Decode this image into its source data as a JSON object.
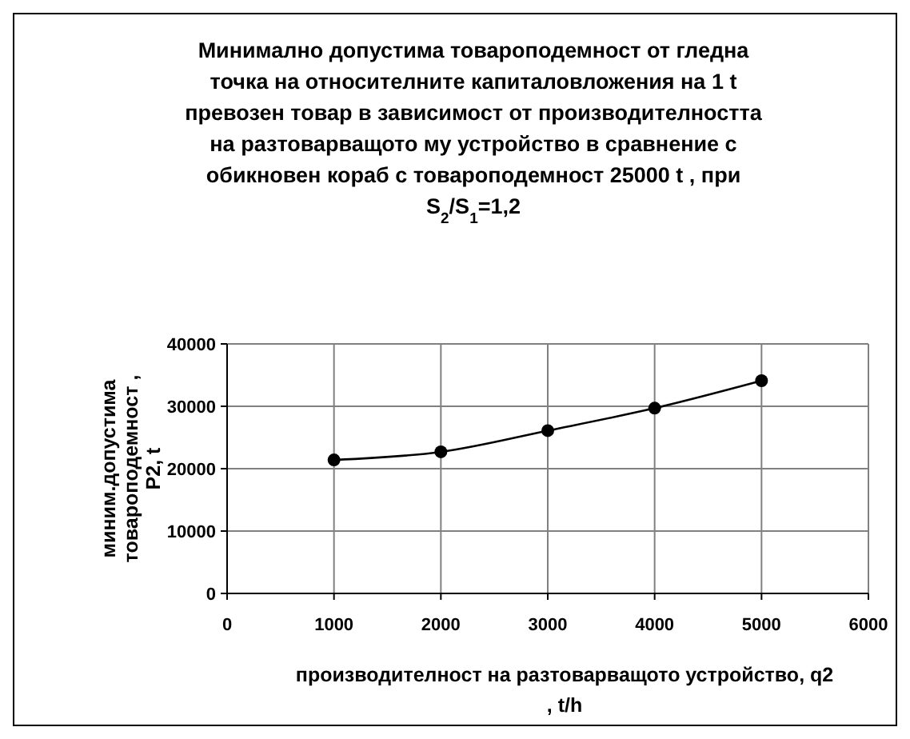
{
  "chart_data": {
    "type": "line",
    "title": "Минимално допустима товароподемност от гледна точка на относителните капиталовложения на 1 t превозен товар в зависимост от производителността на разтоварващото му устройство в сравнение с обикновен кораб с товароподемност 25000 t , при S$_{2}$/S$_{1}$=1,2",
    "xlabel": "производителност на разтоварващото устройство, q2 , t/h",
    "ylabel": "миним.допустима товароподемност , P2, t",
    "x": [
      1000,
      2000,
      3000,
      4000,
      5000
    ],
    "series": [
      {
        "color": "#000000",
        "values": [
          21400,
          22700,
          26100,
          29700,
          34100
        ]
      }
    ],
    "xlim": [
      0,
      6000
    ],
    "xticks": [
      0,
      1000,
      2000,
      3000,
      4000,
      5000,
      6000
    ],
    "ylim": [
      0,
      40000
    ],
    "yticks": [
      0,
      10000,
      20000,
      30000,
      40000
    ],
    "grid": true,
    "marker": "circle",
    "line_style": "solid"
  }
}
